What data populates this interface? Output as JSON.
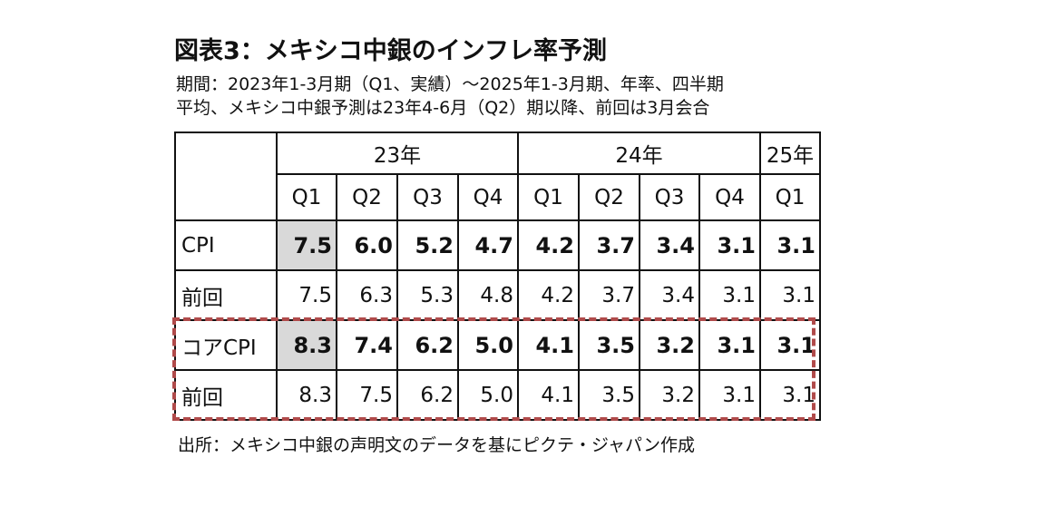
{
  "title": "図表3：メキシコ中銀のインフレ率予測",
  "subtitle_lines": [
    "期間：2023年1-3月期（Q1、実績）～2025年1-3月期、年率、四半期",
    "平均、メキシコ中銀予測は23年4-6月（Q2）期以降、前回は3月会合"
  ],
  "table": {
    "year_headers": [
      "23年",
      "24年",
      "25年"
    ],
    "quarters": [
      "Q1",
      "Q2",
      "Q3",
      "Q4",
      "Q1",
      "Q2",
      "Q3",
      "Q4",
      "Q1"
    ],
    "rows": [
      {
        "label": "CPI",
        "values": [
          "7.5",
          "6.0",
          "5.2",
          "4.7",
          "4.2",
          "3.7",
          "3.4",
          "3.1",
          "3.1"
        ]
      },
      {
        "label": "前回",
        "values": [
          "7.5",
          "6.3",
          "5.3",
          "4.8",
          "4.2",
          "3.7",
          "3.4",
          "3.1",
          "3.1"
        ]
      },
      {
        "label": "コアCPI",
        "values": [
          "8.3",
          "7.4",
          "6.2",
          "5.0",
          "4.1",
          "3.5",
          "3.2",
          "3.1",
          "3.1"
        ]
      },
      {
        "label": "前回",
        "values": [
          "8.3",
          "7.5",
          "6.2",
          "5.0",
          "4.1",
          "3.5",
          "3.2",
          "3.1",
          "3.1"
        ]
      }
    ]
  },
  "source": "出所：メキシコ中銀の声明文のデータを基にピクテ・ジャパン作成",
  "colors": {
    "highlight_border": "#b04a4a",
    "actual_shade": "#d9d9d9",
    "text": "#111111"
  }
}
